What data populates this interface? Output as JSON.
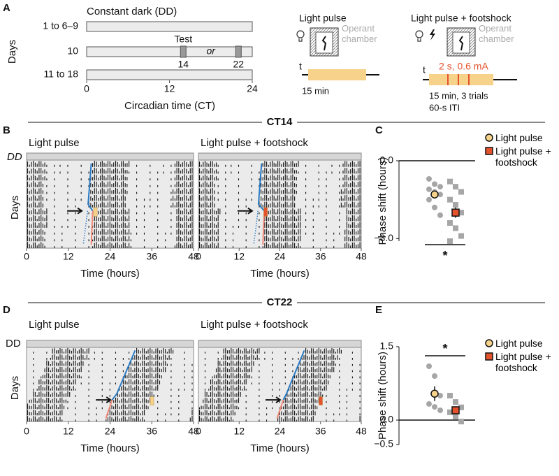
{
  "panel_labels": {
    "a": "A",
    "b": "B",
    "c": "C",
    "d": "D",
    "e": "E"
  },
  "panel_a": {
    "title": "Constant dark (DD)",
    "y_label": "Days",
    "rows": [
      "1 to 6–9",
      "10",
      "11 to 18"
    ],
    "test": "Test",
    "or": "or",
    "test_ticks": [
      14,
      22
    ],
    "xticks": [
      0,
      12,
      24
    ],
    "x_label": "Circadian time (CT)"
  },
  "protocol_light": {
    "title": "Light pulse",
    "chamber": "Operant chamber",
    "t": "t",
    "duration": "15 min"
  },
  "protocol_shock": {
    "title": "Light pulse + footshock",
    "chamber": "Operant chamber",
    "t": "t",
    "shock": "2 s, 0.6 mA",
    "duration": "15 min, 3 trials",
    "iti": "60-s ITI"
  },
  "sections": [
    "CT14",
    "CT22"
  ],
  "actograms": {
    "titles": [
      "Light pulse",
      "Light pulse + footshock"
    ],
    "dd": "DD",
    "y_label": "Days",
    "x_label": "Time (hours)",
    "xticks": [
      0,
      12,
      24,
      36,
      48
    ]
  },
  "chart_data": [
    {
      "type": "dot",
      "y_label": "Phase shift (hours)",
      "ylim": [
        -3.1,
        0
      ],
      "yticks": [
        {
          "value": 0,
          "label": "0.0"
        },
        {
          "value": -3,
          "label": "−3.0"
        }
      ],
      "reference_line": 0,
      "series": [
        {
          "name": "Light pulse",
          "color": "#a6a6a6",
          "mean_color": "#f6d28b",
          "marker": "circle",
          "values": [
            -0.7,
            -0.9,
            -1.0,
            -1.1,
            -1.2,
            -1.3,
            -1.5,
            -1.8,
            -2.1
          ],
          "mean": -1.3,
          "error": 0.12
        },
        {
          "name": "Light pulse + footshock",
          "color": "#a6a6a6",
          "mean_color": "#e5532d",
          "marker": "square",
          "values": [
            -0.8,
            -1.0,
            -1.2,
            -1.5,
            -1.7,
            -2.0,
            -2.4,
            -2.6,
            -2.9,
            -3.1
          ],
          "mean": -2.0,
          "error": 0.2
        }
      ],
      "significance": "*"
    },
    {
      "type": "dot",
      "y_label": "Phase shift (hours)",
      "ylim": [
        -0.5,
        1.5
      ],
      "yticks": [
        {
          "value": 1.5,
          "label": "1.5"
        },
        {
          "value": 0,
          "label": "0.0"
        },
        {
          "value": -0.5,
          "label": "−0.5"
        }
      ],
      "reference_line": 0,
      "series": [
        {
          "name": "Light pulse",
          "color": "#a6a6a6",
          "mean_color": "#f6d28b",
          "marker": "circle",
          "values": [
            1.1,
            0.9,
            0.5,
            0.33,
            0.27,
            0.2
          ],
          "mean": 0.54,
          "error": 0.15
        },
        {
          "name": "Light pulse + footshock",
          "color": "#a6a6a6",
          "mean_color": "#e5532d",
          "marker": "square",
          "values": [
            0.5,
            0.37,
            0.26,
            0.16,
            0.07,
            -0.03
          ],
          "mean": 0.2,
          "error": 0.08
        }
      ],
      "significance": "*"
    }
  ]
}
